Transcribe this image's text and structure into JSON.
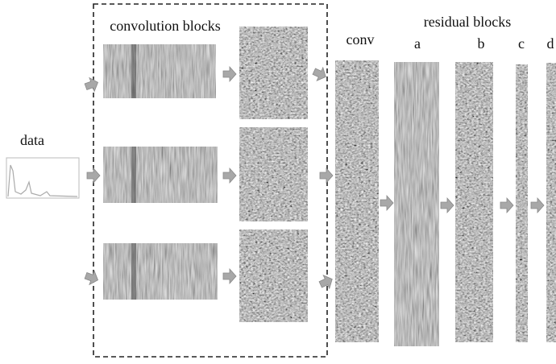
{
  "labels": {
    "data": "data",
    "convolution_blocks": "convolution blocks",
    "conv": "conv",
    "residual_blocks": "residual blocks",
    "blocks": [
      "a",
      "b",
      "c",
      "d"
    ]
  }
}
